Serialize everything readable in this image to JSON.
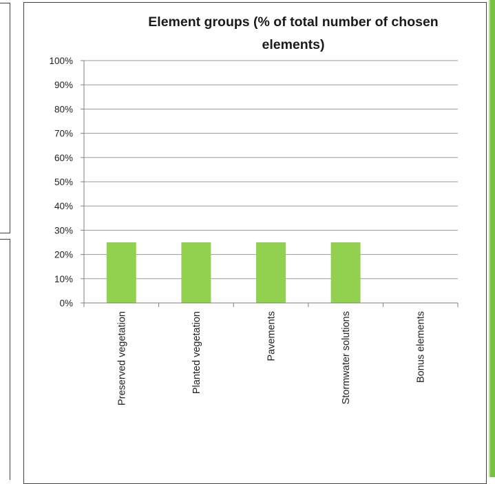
{
  "chart_data": {
    "type": "bar",
    "title_lines": [
      "Element groups (% of total number of chosen",
      "elements)"
    ],
    "xlabel": "",
    "ylabel": "",
    "categories": [
      "Preserved vegetation",
      "Planted vegetation",
      "Pavements",
      "Stormwater solutions",
      "Bonus elements"
    ],
    "values": [
      25,
      25,
      25,
      25,
      0
    ],
    "ylim": [
      0,
      100
    ],
    "yticks": [
      "0%",
      "10%",
      "20%",
      "30%",
      "40%",
      "50%",
      "60%",
      "70%",
      "80%",
      "90%",
      "100%"
    ],
    "grid": true,
    "legend": "none"
  },
  "colors": {
    "bar": "#92d050",
    "grid": "#9a9a9a",
    "axis": "#7f7f7f",
    "frame": "#3f3f3f",
    "accent": "#79bf43"
  }
}
